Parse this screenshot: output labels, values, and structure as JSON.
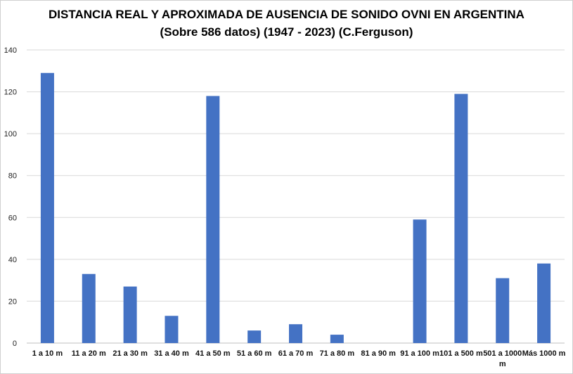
{
  "chart_data": {
    "type": "bar",
    "title": "DISTANCIA REAL Y APROXIMADA DE AUSENCIA DE SONIDO OVNI  EN ARGENTINA",
    "subtitle": "(Sobre 586 datos) (1947 - 2023) (C.Ferguson)",
    "categories": [
      "1 a 10 m",
      "11 a 20 m",
      "21 a 30 m",
      "31 a 40 m",
      "41 a 50 m",
      "51 a 60 m",
      "61 a 70 m",
      "71 a 80 m",
      "81 a 90 m",
      "91 a 100 m",
      "101 a 500 m",
      "501 a 1000 m",
      "Más 1000 m"
    ],
    "values": [
      129,
      33,
      27,
      13,
      118,
      6,
      9,
      4,
      0,
      59,
      119,
      31,
      38
    ],
    "xlabel": "",
    "ylabel": "",
    "ylim": [
      0,
      140
    ],
    "yticks": [
      0,
      20,
      40,
      60,
      80,
      100,
      120,
      140
    ],
    "grid": true,
    "legend": "none",
    "bar_color": "#4472C4",
    "grid_color": "#d9d9d9"
  }
}
